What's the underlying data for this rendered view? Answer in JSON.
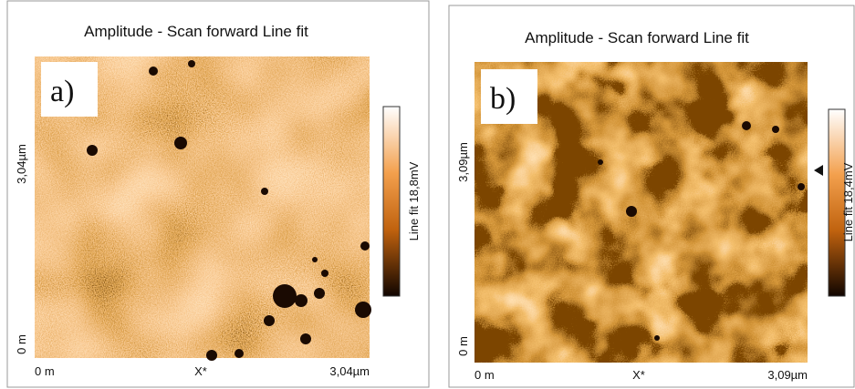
{
  "panels": [
    {
      "title": "Amplitude - Scan forward   Line fit",
      "label": "a)",
      "y_axis_top": "3,04µm",
      "y_axis_bottom": "0 m",
      "x_axis_left": "0 m",
      "x_axis_middle": "X*",
      "x_axis_right": "3,04µm",
      "colorbar_label": "Line fit 18,8mV"
    },
    {
      "title": "Amplitude - Scan forward   Line fit",
      "label": "b)",
      "y_axis_top": "3,09µm",
      "y_axis_bottom": "0 m",
      "x_axis_left": "0 m",
      "x_axis_middle": "X*",
      "x_axis_right": "3,09µm",
      "colorbar_label": "Line fit 18,4mV"
    }
  ]
}
